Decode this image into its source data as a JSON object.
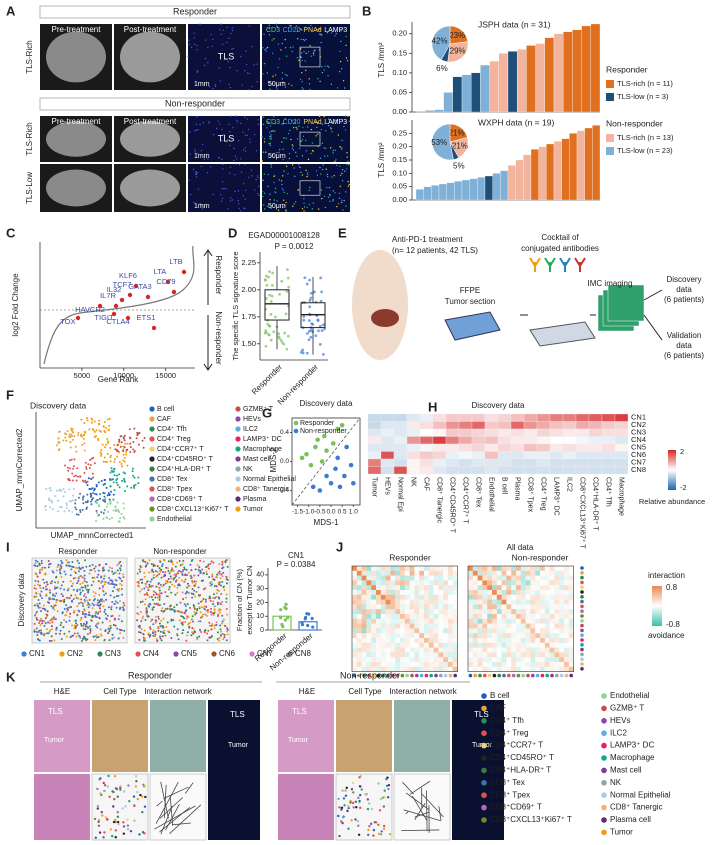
{
  "A": {
    "label": "A",
    "responder": "Responder",
    "non_responder": "Non-responder",
    "pre": "Pre-treatment",
    "post": "Post-treatment",
    "tls_rich": "TLS-Rich",
    "tls_low": "TLS-Low",
    "tls": "TLS",
    "mm": "1mm",
    "um": "50μm",
    "markers": [
      {
        "name": "CD3",
        "color": "#5cd65c"
      },
      {
        "name": "CD20",
        "color": "#29b6f6"
      },
      {
        "name": "PNAd",
        "color": "#ffd54f"
      },
      {
        "name": "LAMP3",
        "color": "#ffffff"
      }
    ]
  },
  "B": {
    "label": "B",
    "ylabel": "TLS /mm²",
    "legend": [
      {
        "title": "Responder",
        "items": [
          {
            "name": "TLS-rich (n = 11)",
            "color": "#e0701f"
          },
          {
            "name": "TLS-low (n = 3)",
            "color": "#1f4e79"
          }
        ]
      },
      {
        "title": "Non-responder",
        "items": [
          {
            "name": "TLS-rich (n = 13)",
            "color": "#f2b49c"
          },
          {
            "name": "TLS-low (n = 23)",
            "color": "#7fb0d8"
          }
        ]
      }
    ],
    "group_colors": [
      "#e0701f",
      "#1f4e79",
      "#f2b49c",
      "#7fb0d8"
    ],
    "charts": [
      {
        "title": "JSPH data (n = 31)",
        "ylim": [
          0,
          0.23
        ],
        "yticks": [
          {
            "value": 0,
            "label": "0.00"
          },
          {
            "value": 0.05,
            "label": "0.05"
          },
          {
            "value": 0.1,
            "label": "0.10"
          },
          {
            "value": 0.15,
            "label": "0.15"
          },
          {
            "value": 0.2,
            "label": "0.20"
          }
        ],
        "values": [
          0.002,
          0.004,
          0.006,
          0.05,
          0.09,
          0.095,
          0.1,
          0.12,
          0.13,
          0.15,
          0.155,
          0.16,
          0.17,
          0.175,
          0.19,
          0.2,
          0.205,
          0.21,
          0.22,
          0.225
        ],
        "groups": [
          3,
          3,
          3,
          3,
          1,
          3,
          1,
          3,
          2,
          2,
          1,
          2,
          0,
          2,
          0,
          2,
          0,
          0,
          0,
          0
        ],
        "pie": {
          "values": [
            23,
            29,
            6,
            42
          ],
          "value_labels": [
            "23%",
            "29%",
            "6%",
            "42%"
          ],
          "groups": [
            0,
            2,
            1,
            3
          ]
        }
      },
      {
        "title": "WXPH data (n = 19)",
        "ylim": [
          0,
          0.3
        ],
        "yticks": [
          {
            "value": 0,
            "label": "0.00"
          },
          {
            "value": 0.05,
            "label": "0.05"
          },
          {
            "value": 0.1,
            "label": "0.10"
          },
          {
            "value": 0.15,
            "label": "0.15"
          },
          {
            "value": 0.2,
            "label": "0.20"
          },
          {
            "value": 0.25,
            "label": "0.25"
          }
        ],
        "values": [
          0.04,
          0.05,
          0.055,
          0.06,
          0.065,
          0.07,
          0.075,
          0.08,
          0.085,
          0.09,
          0.1,
          0.11,
          0.13,
          0.15,
          0.17,
          0.19,
          0.2,
          0.21,
          0.22,
          0.23,
          0.25,
          0.26,
          0.27,
          0.28
        ],
        "groups": [
          3,
          3,
          3,
          3,
          3,
          3,
          3,
          3,
          3,
          1,
          3,
          3,
          2,
          2,
          2,
          0,
          2,
          0,
          2,
          0,
          0,
          2,
          0,
          0
        ],
        "pie": {
          "values": [
            21,
            21,
            5,
            53
          ],
          "value_labels": [
            "21%",
            "21%",
            "5%",
            "53%"
          ],
          "groups": [
            0,
            2,
            1,
            3
          ]
        }
      }
    ]
  },
  "C": {
    "label": "C",
    "ylabel": "log2 Fold Change",
    "xlabel": "Gene Rank",
    "xlim": [
      0,
      18500
    ],
    "xticks": [
      5000,
      10000,
      15000
    ],
    "up": "Responder",
    "down": "Non-responder",
    "genes": [
      "LTB",
      "LTA",
      "CD79",
      "KLF6",
      "TCF7",
      "GATA3",
      "IL7R",
      "IL32",
      "ETS1",
      "HAVCR2",
      "TOX",
      "TIGIT",
      "CTLA4"
    ]
  },
  "D": {
    "label": "D",
    "title": "EGAD00001008128",
    "p": "P = 0.0012",
    "ylabel": "The specific TLS signature score",
    "ylim": [
      1.35,
      2.35
    ],
    "yticks": [
      {
        "value": 1.5,
        "label": "1.50"
      },
      {
        "value": 1.75,
        "label": "1.75"
      },
      {
        "value": 2,
        "label": "2.00"
      },
      {
        "value": 2.25,
        "label": "2.25"
      }
    ],
    "categories": [
      "Responder",
      "Non-responder"
    ],
    "boxes": [
      {
        "min": 1.45,
        "q1": 1.72,
        "median": 1.87,
        "q3": 2.0,
        "max": 2.22
      },
      {
        "min": 1.4,
        "q1": 1.65,
        "median": 1.77,
        "q3": 1.88,
        "max": 2.12
      }
    ],
    "colors": [
      "#7cc05a",
      "#3a7bd5"
    ]
  },
  "E": {
    "label": "E",
    "texts": [
      "Anti-PD-1 treatment",
      "(n= 12 patients, 42 TLS)",
      "FFPE",
      "Tumor section",
      "Cocktail of",
      "conjugated antibodies",
      "IMC imaging",
      "Discovery",
      "data",
      "(6 patients)",
      "Validation",
      "data",
      "(6 patients)"
    ]
  },
  "F": {
    "label": "F",
    "title": "Discovery data",
    "xlabel": "UMAP_mnnCorrected1",
    "ylabel": "UMAP_mnnCorrected2",
    "cell_types": [
      {
        "name": "B cell",
        "color": "#1f5fbf"
      },
      {
        "name": "CAF",
        "color": "#e8a33c"
      },
      {
        "name": "CD4⁺ Tfh",
        "color": "#2e8b57"
      },
      {
        "name": "CD4⁺ Treg",
        "color": "#e35050"
      },
      {
        "name": "CD4⁺CCR7⁺ T",
        "color": "#f2d16b"
      },
      {
        "name": "CD4⁺CD45RO⁺ T",
        "color": "#222222"
      },
      {
        "name": "CD4⁺HLA-DR⁺ T",
        "color": "#3d7a3d"
      },
      {
        "name": "CD8⁺ Tex",
        "color": "#4a6fa5"
      },
      {
        "name": "CD8⁺ Tpex",
        "color": "#d9534f"
      },
      {
        "name": "CD8⁺CD69⁺ T",
        "color": "#b06ab3"
      },
      {
        "name": "CD8⁺CXCL13⁺Ki67⁺ T",
        "color": "#6b8e23"
      },
      {
        "name": "Endothelial",
        "color": "#8fd1a0"
      },
      {
        "name": "GZMB⁺ T",
        "color": "#c0504d"
      },
      {
        "name": "HEVs",
        "color": "#8e44ad"
      },
      {
        "name": "ILC2",
        "color": "#5dade2"
      },
      {
        "name": "LAMP3⁺ DC",
        "color": "#e91e63"
      },
      {
        "name": "Macrophage",
        "color": "#17a589"
      },
      {
        "name": "Mast cell",
        "color": "#7d3c98"
      },
      {
        "name": "NK",
        "color": "#95a5a6"
      },
      {
        "name": "Normal Epithelial",
        "color": "#a9cce3"
      },
      {
        "name": "CD8⁺ Tanergic",
        "color": "#f0b27a"
      },
      {
        "name": "Plasma",
        "color": "#5b2c6f"
      },
      {
        "name": "Tumor",
        "color": "#f39c12"
      }
    ]
  },
  "G": {
    "label": "G",
    "title": "Discovery data",
    "xlabel": "MDS-1",
    "ylabel": "MDS-2",
    "xlim": [
      -1.75,
      1.3
    ],
    "ylim": [
      -0.6,
      0.6
    ],
    "xticks": [
      {
        "value": -1.5,
        "label": "-1.5"
      },
      {
        "value": -1,
        "label": "-1.0"
      },
      {
        "value": -0.5,
        "label": "-0.5"
      },
      {
        "value": 0,
        "label": "0.0"
      },
      {
        "value": 0.5,
        "label": "0.5"
      },
      {
        "value": 1,
        "label": "1.0"
      }
    ],
    "yticks": [
      {
        "value": -0.4,
        "label": "-0.4"
      },
      {
        "value": 0,
        "label": "0.0"
      },
      {
        "value": 0.4,
        "label": "0.4"
      }
    ],
    "series": [
      {
        "name": "Responder",
        "color": "#7cc05a",
        "x": [
          -1.3,
          -1.1,
          -0.9,
          -0.7,
          -0.6,
          -0.4,
          -0.3,
          -0.2,
          0.1,
          0.3,
          0.5
        ],
        "y": [
          0.05,
          0.1,
          -0.05,
          0.2,
          0.3,
          0.0,
          0.35,
          0.15,
          0.25,
          0.45,
          0.5
        ]
      },
      {
        "name": "Non-responder",
        "color": "#3a7bd5",
        "x": [
          -0.8,
          -0.5,
          -0.2,
          0.0,
          0.2,
          0.3,
          0.4,
          0.6,
          0.7,
          0.9,
          1.0
        ],
        "y": [
          -0.35,
          -0.4,
          -0.2,
          -0.3,
          -0.1,
          0.05,
          -0.35,
          -0.2,
          0.2,
          -0.05,
          -0.3
        ]
      }
    ]
  },
  "H": {
    "label": "H",
    "title": "Discovery data",
    "clim": [
      -2,
      2
    ],
    "cbar_label": "Relative abundance",
    "rows": [
      "CN1",
      "CN2",
      "CN3",
      "CN4",
      "CN5",
      "CN6",
      "CN7",
      "CN8"
    ],
    "cols": [
      "Tumor",
      "HEVs",
      "Normal Epi",
      "NK",
      "CAF",
      "CD8⁺ Tanergic",
      "CD4⁺CD45RO⁺ T",
      "CD4⁺CCR7⁺ T",
      "CD8⁺ Tex",
      "Endothelial",
      "B cell",
      "Plasma",
      "CD8⁺ Tpex",
      "CD4⁺ Treg",
      "LAMP3⁺ DC",
      "ILC2",
      "CD8⁺CXCL13⁺Ki67⁺ T",
      "CD4⁺HLA-DR⁺ T",
      "CD4⁺ Tfh",
      "Macrophage"
    ],
    "values": [
      [
        -0.5,
        -0.5,
        -0.5,
        -0.3,
        -0.2,
        0.3,
        0.5,
        0.5,
        0.5,
        0.3,
        0.4,
        0.6,
        0.8,
        1.0,
        1.2,
        1.2,
        1.4,
        1.5,
        1.6,
        1.8
      ],
      [
        -0.5,
        -0.3,
        -0.3,
        0.2,
        0.3,
        0.6,
        1.0,
        1.2,
        1.4,
        0.5,
        0.6,
        1.4,
        1.0,
        0.8,
        0.6,
        0.5,
        0.8,
        0.7,
        0.5,
        0.4
      ],
      [
        -0.3,
        -0.2,
        -0.3,
        -0.2,
        0,
        0.1,
        0.5,
        0.5,
        0.4,
        0.3,
        0.2,
        0.3,
        0.2,
        0.4,
        0.3,
        0.2,
        0.2,
        0.4,
        0.3,
        0.3
      ],
      [
        0.2,
        -0.3,
        -0.2,
        1.0,
        1.4,
        1.8,
        1.2,
        0.8,
        0.5,
        0.6,
        0.3,
        0.2,
        0.2,
        0.1,
        0,
        0,
        -0.1,
        -0.2,
        -0.2,
        -0.3
      ],
      [
        -0.3,
        -0.3,
        -0.3,
        -0.2,
        -0.1,
        0.2,
        0.2,
        0.3,
        0.4,
        0.2,
        0.4,
        0.3,
        0.6,
        0.5,
        0.2,
        0.3,
        0.2,
        0.2,
        0.3,
        0.1
      ],
      [
        -0.2,
        1.6,
        -0.3,
        0.3,
        0.5,
        0.4,
        -0.2,
        -0.1,
        -0.2,
        0.6,
        -0.3,
        -0.3,
        -0.2,
        -0.2,
        -0.3,
        -0.2,
        -0.3,
        -0.3,
        -0.3,
        -0.3
      ],
      [
        1.2,
        -0.3,
        -0.4,
        0.1,
        0.3,
        -0.2,
        -0.3,
        -0.4,
        -0.3,
        -0.3,
        -0.3,
        -0.4,
        -0.4,
        -0.3,
        -0.4,
        -0.4,
        -0.4,
        -0.4,
        -0.4,
        -0.4
      ],
      [
        1.4,
        -0.4,
        1.6,
        0.1,
        0.2,
        -0.3,
        -0.4,
        -0.4,
        -0.4,
        -0.3,
        -0.4,
        -0.4,
        -0.4,
        -0.4,
        -0.4,
        -0.4,
        -0.4,
        -0.4,
        -0.4,
        -0.4
      ]
    ]
  },
  "I": {
    "label": "I",
    "side": "Discovery data",
    "responder": "Responder",
    "non_responder": "Non-responder",
    "title": "CN1",
    "p": "P = 0.0384",
    "ylabel": "Fraction of CN (%)",
    "ylabel2": "except for Tumor CN",
    "ylim": [
      0,
      45
    ],
    "yticks": [
      0,
      10,
      20,
      30,
      40
    ],
    "categories": [
      "Responder",
      "Non-responder"
    ],
    "values": [
      10,
      6
    ],
    "colors": [
      "#7cc05a",
      "#3a7bd5"
    ],
    "cns": [
      {
        "name": "CN1",
        "color": "#3a7bd5"
      },
      {
        "name": "CN2",
        "color": "#f39c12"
      },
      {
        "name": "CN3",
        "color": "#2e8b57"
      },
      {
        "name": "CN4",
        "color": "#e35050"
      },
      {
        "name": "CN5",
        "color": "#8e44ad"
      },
      {
        "name": "CN6",
        "color": "#a0522d"
      },
      {
        "name": "CN7",
        "color": "#e377c2"
      },
      {
        "name": "CN8",
        "color": "#888888"
      }
    ]
  },
  "J": {
    "label": "J",
    "title": "All data",
    "responder": "Responder",
    "non_responder": "Non-responder",
    "clim": [
      -0.8,
      0.8
    ],
    "top": "interaction",
    "bottom": "avoidance"
  },
  "K": {
    "label": "K",
    "responder": "Responder",
    "non_responder": "Non-responder",
    "he": "H&E",
    "cell_type": "Cell Type",
    "network": "Interaction network",
    "tls": "TLS",
    "tumor": "Tumor",
    "legend": [
      "B cell",
      "CAF",
      "CD4⁺ Tfh",
      "CD4⁺ Treg",
      "CD4⁺CCR7⁺ T",
      "CD4⁺CD45RO⁺ T",
      "CD4⁺HLA-DR⁺ T",
      "CD8⁺ Tex",
      "CD8⁺ Tpex",
      "CD8⁺CD69⁺ T",
      "CD8⁺CXCL13⁺Ki67⁺ T",
      "Endothelial",
      "GZMB⁺ T",
      "HEVs",
      "ILC2",
      "LAMP3⁺ DC",
      "Macrophage",
      "Mast cell",
      "NK",
      "Normal Epithelial",
      "CD8⁺ Tanergic",
      "Plasma cell",
      "Tumor"
    ]
  }
}
